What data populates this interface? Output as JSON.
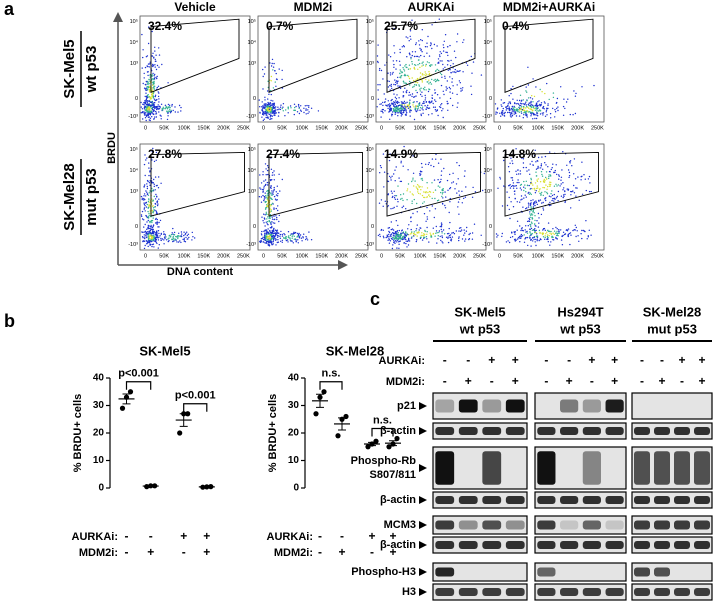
{
  "panel_a": {
    "label": "a",
    "columns": [
      "Vehicle",
      "MDM2i",
      "AURKAi",
      "MDM2i+AURKAi"
    ],
    "rows": [
      {
        "name": "SK-Mel5",
        "subname": "wt p53",
        "percentages": [
          "32.4%",
          "0.7%",
          "25.7%",
          "0.4%"
        ]
      },
      {
        "name": "SK-Mel28",
        "subname": "mut p53",
        "percentages": [
          "27.8%",
          "27.4%",
          "14.9%",
          "14.8%"
        ]
      }
    ],
    "y_axis_label": "BRDU",
    "x_axis_label": "DNA content",
    "x_tick_labels": [
      "0",
      "50K",
      "100K",
      "150K",
      "200K",
      "250K"
    ],
    "y_tick_labels": [
      "10⁵",
      "10⁴",
      "10³",
      "0",
      "-10³"
    ]
  },
  "panel_b": {
    "label": "b"
  },
  "chart_data": [
    {
      "type": "dot",
      "title": "SK-Mel5",
      "y_label": "% BRDU+ cells",
      "ylim": [
        0,
        40
      ],
      "yticks": [
        0,
        10,
        20,
        30,
        40
      ],
      "groups": [
        {
          "points": [
            29,
            33,
            35
          ],
          "mean": 32.4,
          "error": 1.8
        },
        {
          "points": [
            0.5,
            0.8,
            0.8
          ],
          "mean": 0.7,
          "error": 0.1
        },
        {
          "points": [
            20,
            27,
            27
          ],
          "mean": 24.7,
          "error": 2.3
        },
        {
          "points": [
            0.3,
            0.4,
            0.5
          ],
          "mean": 0.4,
          "error": 0.1
        }
      ],
      "conditions": [
        {
          "name": "AURKAi:",
          "values": [
            "-",
            "-",
            "+",
            "+"
          ]
        },
        {
          "name": "MDM2i:",
          "values": [
            "-",
            "+",
            "-",
            "+"
          ]
        }
      ],
      "comparisons": [
        {
          "groups": [
            0,
            1
          ],
          "label": "p<0.001"
        },
        {
          "groups": [
            2,
            3
          ],
          "label": "p<0.001"
        }
      ]
    },
    {
      "type": "dot",
      "title": "SK-Mel28",
      "y_label": "% BRDU+ cells",
      "ylim": [
        0,
        40
      ],
      "yticks": [
        0,
        10,
        20,
        30,
        40
      ],
      "groups": [
        {
          "points": [
            27,
            33,
            35
          ],
          "mean": 31.7,
          "error": 2.4
        },
        {
          "points": [
            19,
            25,
            26
          ],
          "mean": 23.3,
          "error": 2.2
        },
        {
          "points": [
            15,
            16,
            17
          ],
          "mean": 16,
          "error": 0.6
        },
        {
          "points": [
            15,
            16,
            18
          ],
          "mean": 16.3,
          "error": 0.9
        }
      ],
      "conditions": [
        {
          "name": "AURKAi:",
          "values": [
            "-",
            "-",
            "+",
            "+"
          ]
        },
        {
          "name": "MDM2i:",
          "values": [
            "-",
            "+",
            "-",
            "+"
          ]
        }
      ],
      "comparisons": [
        {
          "groups": [
            0,
            1
          ],
          "label": "n.s."
        },
        {
          "groups": [
            2,
            3
          ],
          "label": "n.s."
        }
      ]
    }
  ],
  "panel_c": {
    "label": "c",
    "cell_lines": [
      {
        "name": "SK-Mel5",
        "subname": "wt p53"
      },
      {
        "name": "Hs294T",
        "subname": "wt p53"
      },
      {
        "name": "SK-Mel28",
        "subname": "mut p53"
      }
    ],
    "conditions": [
      {
        "name": "AURKAi:",
        "values": [
          "-",
          "-",
          "+",
          "+"
        ]
      },
      {
        "name": "MDM2i:",
        "values": [
          "-",
          "+",
          "-",
          "+"
        ]
      }
    ],
    "blots": [
      [
        "p21"
      ],
      [
        "β-actin"
      ],
      [
        "Phospho-Rb",
        "S807/811"
      ],
      [
        "β-actin"
      ],
      [
        "MCM3"
      ],
      [
        "β-actin"
      ],
      [
        "Phospho-H3"
      ],
      [
        "H3"
      ]
    ]
  }
}
